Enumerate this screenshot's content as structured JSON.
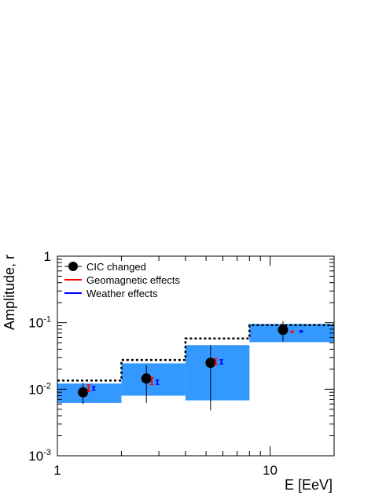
{
  "chart_data": {
    "type": "scatter",
    "xlabel": "E [EeV]",
    "ylabel": "Amplitude, r",
    "xscale": "log",
    "yscale": "log",
    "xlim": [
      1,
      20
    ],
    "ylim": [
      0.001,
      1
    ],
    "x_tick_labels": [
      {
        "value": 1,
        "label": "1"
      },
      {
        "value": 10,
        "label": "10"
      }
    ],
    "y_tick_labels": [
      {
        "value": 1,
        "base": "1",
        "exp": ""
      },
      {
        "value": 0.1,
        "base": "10",
        "exp": "-1"
      },
      {
        "value": 0.01,
        "base": "10",
        "exp": "-2"
      },
      {
        "value": 0.001,
        "base": "10",
        "exp": "-3"
      }
    ],
    "legend_position": "top-left",
    "legend": [
      {
        "label": "CIC changed",
        "marker": "dot",
        "color": "#000000"
      },
      {
        "label": "Geomagnetic effects",
        "marker": "line",
        "color": "#ff0000"
      },
      {
        "label": "Weather effects",
        "marker": "line",
        "color": "#0000ff"
      }
    ],
    "colors": {
      "band": "#3399ff",
      "dotted_line": "#000000",
      "geomagnetic": "#ff0000",
      "weather": "#0000ff"
    },
    "bins": [
      {
        "emin": 1,
        "emax": 2,
        "band_low": 0.0062,
        "band_high": 0.0122,
        "upper_limit": 0.0135
      },
      {
        "emin": 2,
        "emax": 4,
        "band_low": 0.008,
        "band_high": 0.0245,
        "upper_limit": 0.0275
      },
      {
        "emin": 4,
        "emax": 8,
        "band_low": 0.0068,
        "band_high": 0.046,
        "upper_limit": 0.058
      },
      {
        "emin": 8,
        "emax": 20,
        "band_low": 0.051,
        "band_high": 0.096,
        "upper_limit": 0.092
      }
    ],
    "series": [
      {
        "name": "CIC changed",
        "points": [
          {
            "x": 1.32,
            "y": 0.009,
            "ylow": 0.006,
            "yhigh": 0.0125
          },
          {
            "x": 2.62,
            "y": 0.0145,
            "ylow": 0.0062,
            "yhigh": 0.023
          },
          {
            "x": 5.25,
            "y": 0.025,
            "ylow": 0.0048,
            "yhigh": 0.046
          },
          {
            "x": 11.5,
            "y": 0.078,
            "ylow": 0.052,
            "yhigh": 0.105
          }
        ]
      },
      {
        "name": "Geomagnetic effects",
        "points": [
          {
            "x": 1.4,
            "y": 0.0105,
            "ylow": 0.0092,
            "yhigh": 0.0117
          },
          {
            "x": 2.78,
            "y": 0.0133,
            "ylow": 0.0117,
            "yhigh": 0.015
          },
          {
            "x": 5.55,
            "y": 0.0262,
            "ylow": 0.0235,
            "yhigh": 0.029
          },
          {
            "x": 12.7,
            "y": 0.073,
            "ylow": 0.071,
            "yhigh": 0.075
          }
        ]
      },
      {
        "name": "Weather effects",
        "points": [
          {
            "x": 1.48,
            "y": 0.0103,
            "ylow": 0.0097,
            "yhigh": 0.011
          },
          {
            "x": 2.95,
            "y": 0.0128,
            "ylow": 0.0118,
            "yhigh": 0.0138
          },
          {
            "x": 5.9,
            "y": 0.0258,
            "ylow": 0.024,
            "yhigh": 0.0278
          },
          {
            "x": 14.0,
            "y": 0.074,
            "ylow": 0.072,
            "yhigh": 0.076
          }
        ]
      }
    ]
  }
}
